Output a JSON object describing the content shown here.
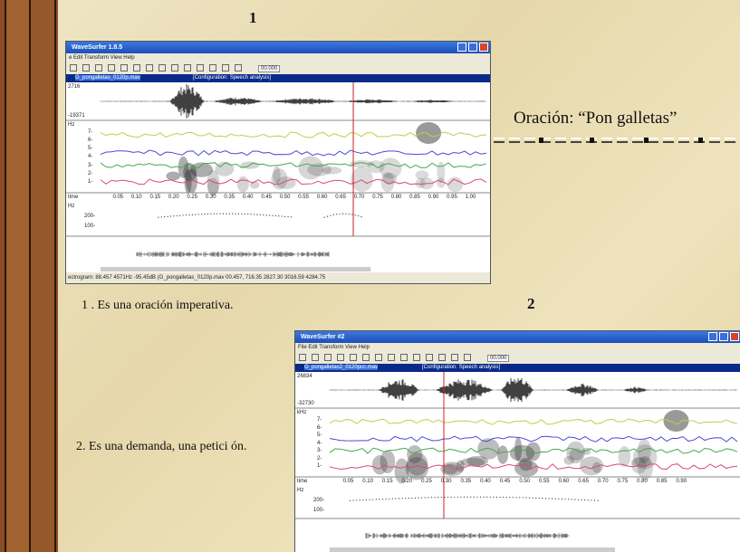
{
  "slide": {
    "number1": "1",
    "number2": "2",
    "sentence": "Oración: “Pon galletas”",
    "point1": "1 . Es una oración imperativa.",
    "point2": "2. Es una demanda, una petici ón."
  },
  "windows": [
    {
      "title": "WaveSurfer 1.8.5",
      "menu": "e Edit Transform View Help",
      "time_field": "00.000",
      "file": "G_pongalletas_0120p.mav",
      "config": "[Configuration: Speech analysis]",
      "wave_max": "2716",
      "wave_min": "-19371",
      "spec_unit": "Hz",
      "spec_ticks": [
        "7-",
        "6-",
        "5-",
        "4-",
        "3-",
        "2-",
        "1-"
      ],
      "time_label": "time",
      "time_ticks": [
        "0.05",
        "0.10",
        "0.15",
        "0.20",
        "0.25",
        "0.30",
        "0.35",
        "0.40",
        "0.45",
        "0.50",
        "0.55",
        "0.60",
        "0.65",
        "0.70",
        "0.75",
        "0.80",
        "0.85",
        "0.90",
        "0.95",
        "1.00"
      ],
      "pitch_unit": "Hz",
      "pitch_ticks": [
        "200-",
        "100-"
      ],
      "status": "ectrogram: 88.457 4571Hz -95.45dB (G_pongalletas_0120p.mav 00.457, 716.35 2827.30 3016.59 4284.75"
    },
    {
      "title": "WaveSurfer #2",
      "menu": "File Edit Transform View Help",
      "time_field": "00.000",
      "file": "G_pongalletas2_0120pcc.mav",
      "config": "[Configuration: Speech analysis]",
      "wave_max": "26834",
      "wave_min": "-32730",
      "spec_unit": "kHz",
      "spec_ticks": [
        "7-",
        "6-",
        "5-",
        "4-",
        "3-",
        "2-",
        "1-"
      ],
      "time_label": "time",
      "time_ticks": [
        "0.05",
        "0.10",
        "0.15",
        "0.20",
        "0.25",
        "0.30",
        "0.35",
        "0.40",
        "0.45",
        "0.50",
        "0.55",
        "0.60",
        "0.65",
        "0.70",
        "0.75",
        "0.80",
        "0.85",
        "0.90"
      ],
      "pitch_unit": "Hz",
      "pitch_ticks": [
        "200-",
        "100-"
      ]
    }
  ]
}
